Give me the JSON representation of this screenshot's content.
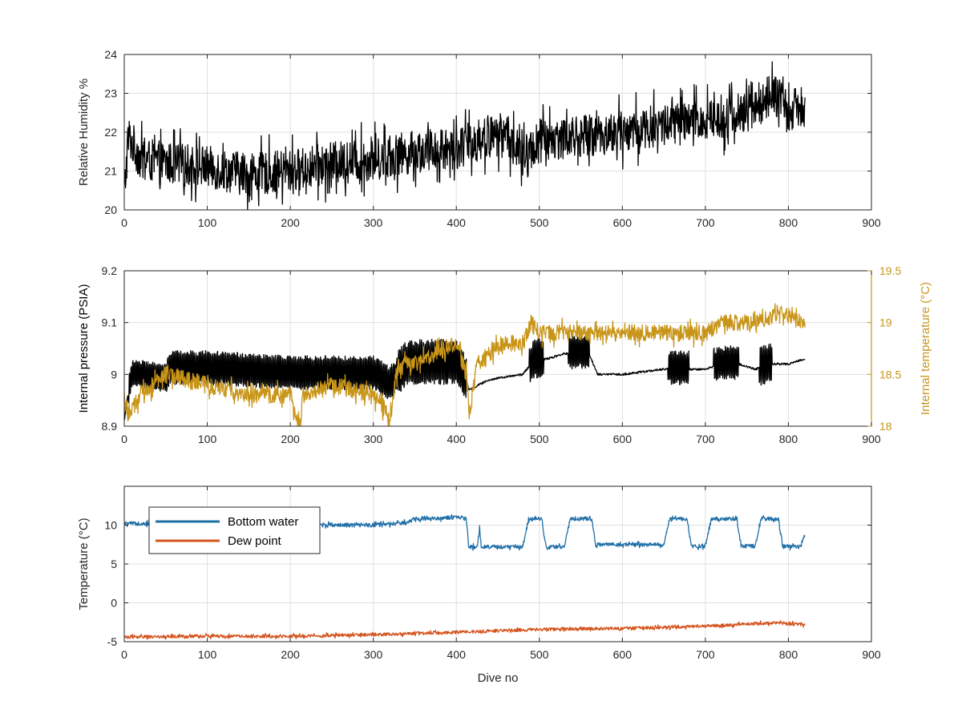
{
  "chart_data": [
    {
      "type": "line",
      "xlabel": "",
      "ylabel": "Relative Humidity %",
      "xlim": [
        0,
        900
      ],
      "ylim": [
        20,
        24
      ],
      "xticks": [
        "0",
        "100",
        "200",
        "300",
        "400",
        "500",
        "600",
        "700",
        "800",
        "900"
      ],
      "yticks": [
        "20",
        "21",
        "22",
        "23",
        "24"
      ],
      "grid": true,
      "series": [
        {
          "color": "#000000",
          "noise": 0.55,
          "x": [
            0,
            5,
            20,
            50,
            100,
            150,
            200,
            250,
            300,
            350,
            400,
            430,
            460,
            480,
            500,
            550,
            600,
            650,
            700,
            750,
            780,
            800,
            820
          ],
          "y": [
            20.4,
            21.9,
            21.3,
            21.2,
            21.1,
            20.9,
            21.0,
            21.2,
            21.3,
            21.5,
            21.6,
            21.8,
            22.0,
            21.3,
            21.8,
            21.9,
            22.0,
            22.2,
            22.3,
            22.5,
            23.0,
            22.5,
            22.7
          ]
        }
      ]
    },
    {
      "type": "line",
      "xlabel": "",
      "ylabel": "Internal pressure (PSIA)",
      "ylabel_right": "Internal temperature (°C)",
      "xlim": [
        0,
        900
      ],
      "ylim": [
        8.9,
        9.2
      ],
      "ylim_right": [
        18,
        19.5
      ],
      "xticks": [
        "0",
        "100",
        "200",
        "300",
        "400",
        "500",
        "600",
        "700",
        "800",
        "900"
      ],
      "yticks": [
        "8.9",
        "9",
        "9.1",
        "9.2"
      ],
      "yticks_right": [
        "18",
        "18.5",
        "19",
        "19.5"
      ],
      "grid": true,
      "right_axis_color": "#c89519",
      "series": [
        {
          "axis": "left",
          "color": "#000000",
          "x": [
            0,
            3,
            10,
            50,
            55,
            100,
            200,
            300,
            320,
            340,
            400,
            412,
            415,
            440,
            480,
            490,
            500,
            510,
            530,
            560,
            570,
            600,
            650,
            680,
            690,
            700,
            720,
            740,
            760,
            780,
            800,
            820
          ],
          "y": [
            8.91,
            8.95,
            9.0,
            8.99,
            9.01,
            9.01,
            9.0,
            9.0,
            8.98,
            9.02,
            9.02,
            8.99,
            8.97,
            8.99,
            9.0,
            9.02,
            9.03,
            9.03,
            9.04,
            9.04,
            9.0,
            9.0,
            9.01,
            9.01,
            9.01,
            9.01,
            9.02,
            9.02,
            9.01,
            9.02,
            9.02,
            9.03
          ],
          "band": [
            [
              5,
              50,
              0.025
            ],
            [
              50,
              330,
              0.03
            ],
            [
              330,
              412,
              0.04
            ],
            [
              488,
              505,
              0.035
            ],
            [
              535,
              560,
              0.03
            ],
            [
              655,
              680,
              0.03
            ],
            [
              710,
              740,
              0.03
            ],
            [
              765,
              780,
              0.035
            ]
          ]
        },
        {
          "axis": "right",
          "color": "#c89519",
          "noise": 0.08,
          "x": [
            0,
            5,
            20,
            50,
            100,
            150,
            200,
            212,
            215,
            250,
            300,
            320,
            330,
            350,
            400,
            412,
            416,
            425,
            440,
            460,
            480,
            490,
            500,
            550,
            600,
            650,
            700,
            720,
            760,
            790,
            820
          ],
          "y": [
            18.3,
            18.1,
            18.3,
            18.5,
            18.4,
            18.3,
            18.3,
            18.0,
            18.3,
            18.4,
            18.3,
            18.1,
            18.6,
            18.6,
            18.8,
            18.5,
            18.1,
            18.6,
            18.7,
            18.8,
            18.8,
            19.0,
            18.9,
            18.9,
            18.9,
            18.9,
            18.9,
            19.0,
            19.0,
            19.1,
            19.0
          ]
        }
      ]
    },
    {
      "type": "line",
      "xlabel": "Dive no",
      "ylabel": "Temperature (°C)",
      "xlim": [
        0,
        900
      ],
      "ylim": [
        -5,
        15
      ],
      "xticks": [
        "0",
        "100",
        "200",
        "300",
        "400",
        "500",
        "600",
        "700",
        "800",
        "900"
      ],
      "yticks": [
        "-5",
        "0",
        "5",
        "10"
      ],
      "grid": true,
      "legend": {
        "position": "top-left",
        "entries": [
          {
            "label": "Bottom water",
            "color": "#1f6fa8"
          },
          {
            "label": "Dew point",
            "color": "#d4541e"
          }
        ]
      },
      "series": [
        {
          "name": "Bottom water",
          "color": "#1f6fa8",
          "noise": 0.25,
          "x": [
            0,
            115,
            200,
            300,
            340,
            350,
            380,
            400,
            412,
            415,
            425,
            428,
            430,
            433,
            480,
            487,
            495,
            500,
            503,
            508,
            530,
            537,
            555,
            560,
            563,
            568,
            650,
            657,
            670,
            675,
            678,
            683,
            700,
            707,
            730,
            735,
            738,
            743,
            760,
            767,
            780,
            785,
            788,
            793,
            810,
            815,
            818,
            820
          ],
          "y": [
            10.2,
            10.2,
            10.1,
            10.0,
            10.3,
            10.8,
            10.9,
            11.0,
            10.8,
            7.2,
            7.2,
            9.5,
            7.3,
            7.2,
            7.2,
            10.8,
            10.9,
            10.8,
            10.8,
            7.2,
            7.2,
            10.8,
            10.8,
            10.8,
            10.8,
            7.5,
            7.5,
            10.8,
            10.8,
            10.8,
            10.8,
            7.3,
            7.3,
            10.8,
            10.8,
            10.8,
            10.8,
            7.3,
            7.3,
            10.8,
            10.8,
            10.8,
            10.8,
            7.3,
            7.2,
            7.2,
            8.5,
            8.5
          ]
        },
        {
          "name": "Dew point",
          "color": "#d4541e",
          "noise": 0.2,
          "x": [
            0,
            100,
            200,
            300,
            400,
            500,
            600,
            700,
            780,
            820
          ],
          "y": [
            -4.4,
            -4.3,
            -4.3,
            -4.1,
            -3.8,
            -3.4,
            -3.3,
            -3.0,
            -2.6,
            -2.8
          ]
        }
      ]
    }
  ]
}
